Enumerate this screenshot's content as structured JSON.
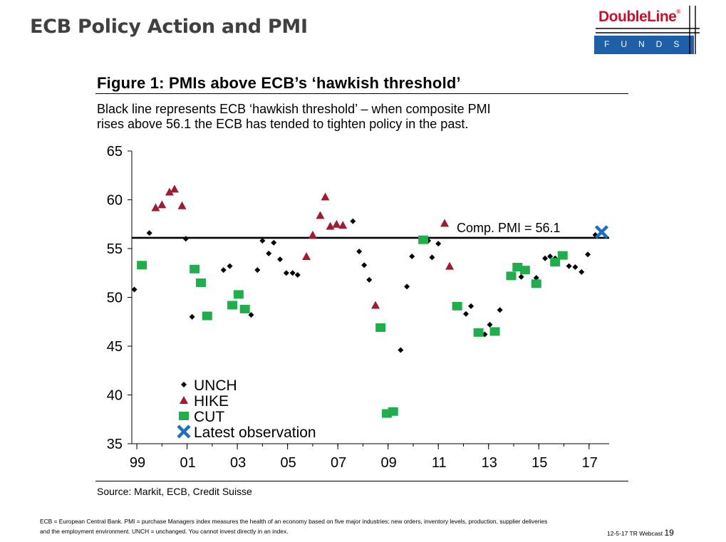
{
  "slide": {
    "title": "ECB Policy Action and PMI",
    "logo_name": "DoubleLine",
    "logo_reg": "®",
    "logo_sub": "FUNDS",
    "footnote_line1": "ECB = European Central Bank. PMI = purchase Managers index measures the health of an economy based on five major industries: new orders, inventory levels, production, supplier deliveries",
    "footnote_line2": "and the employment environment. UNCH = unchanged. You cannot invest directly in an index.",
    "webcast": "12-5-17 TR Webcast",
    "page_number": "19"
  },
  "colors": {
    "title_gray": "#404040",
    "logo_red": "#c8102e",
    "logo_blue": "#1f5fa8",
    "unch": "#000000",
    "hike": "#9e1b32",
    "cut": "#1fae4b",
    "latest": "#1f6fc1"
  },
  "chart_data": {
    "type": "scatter",
    "title": "Figure 1: PMIs above ECB’s ‘hawkish threshold’",
    "subtitle_line1": "Black line represents ECB ‘hawkish threshold’ – when composite PMI",
    "subtitle_line2": "rises above 56.1 the ECB has tended to tighten policy in the past.",
    "source": "Source: Markit, ECB, Credit Suisse",
    "xlim": [
      1998.8,
      2017.8
    ],
    "ylim": [
      35,
      65
    ],
    "yticks": [
      35,
      40,
      45,
      50,
      55,
      60,
      65
    ],
    "xticks": [
      {
        "value": 1999,
        "label": "99"
      },
      {
        "value": 2001,
        "label": "01"
      },
      {
        "value": 2003,
        "label": "03"
      },
      {
        "value": 2005,
        "label": "05"
      },
      {
        "value": 2007,
        "label": "07"
      },
      {
        "value": 2009,
        "label": "09"
      },
      {
        "value": 2011,
        "label": "11"
      },
      {
        "value": 2013,
        "label": "13"
      },
      {
        "value": 2015,
        "label": "15"
      },
      {
        "value": 2017,
        "label": "17"
      }
    ],
    "threshold": {
      "value": 56.1,
      "label": "Comp. PMI = 56.1"
    },
    "legend": {
      "position": "bottom-left",
      "entries": [
        {
          "key": "unch",
          "label": "UNCH"
        },
        {
          "key": "hike",
          "label": "HIKE"
        },
        {
          "key": "cut",
          "label": "CUT"
        },
        {
          "key": "latest",
          "label": "Latest observation"
        }
      ]
    },
    "series": {
      "unch": [
        [
          1998.9,
          50.8
        ],
        [
          1999.5,
          56.6
        ],
        [
          2000.95,
          56.0
        ],
        [
          2001.2,
          48.0
        ],
        [
          2002.45,
          52.8
        ],
        [
          2002.7,
          53.2
        ],
        [
          2003.55,
          48.2
        ],
        [
          2003.8,
          52.8
        ],
        [
          2004.0,
          55.8
        ],
        [
          2004.25,
          54.5
        ],
        [
          2004.45,
          55.6
        ],
        [
          2004.7,
          53.9
        ],
        [
          2004.95,
          52.5
        ],
        [
          2005.2,
          52.5
        ],
        [
          2005.4,
          52.3
        ],
        [
          2007.6,
          57.8
        ],
        [
          2007.85,
          54.7
        ],
        [
          2008.05,
          53.3
        ],
        [
          2008.25,
          51.8
        ],
        [
          2009.5,
          44.6
        ],
        [
          2009.75,
          51.1
        ],
        [
          2009.95,
          54.2
        ],
        [
          2010.6,
          55.8
        ],
        [
          2010.75,
          54.1
        ],
        [
          2011.0,
          55.5
        ],
        [
          2012.1,
          48.3
        ],
        [
          2012.3,
          49.1
        ],
        [
          2012.85,
          46.2
        ],
        [
          2013.05,
          47.2
        ],
        [
          2013.45,
          48.7
        ],
        [
          2014.3,
          52.1
        ],
        [
          2014.9,
          52.0
        ],
        [
          2015.25,
          54.0
        ],
        [
          2015.45,
          54.2
        ],
        [
          2015.65,
          54.0
        ],
        [
          2016.2,
          53.2
        ],
        [
          2016.45,
          53.1
        ],
        [
          2016.7,
          52.6
        ],
        [
          2016.95,
          54.4
        ],
        [
          2017.25,
          56.4
        ]
      ],
      "hike": [
        [
          1999.75,
          59.2
        ],
        [
          2000.0,
          59.5
        ],
        [
          2000.3,
          60.8
        ],
        [
          2000.5,
          61.1
        ],
        [
          2000.8,
          59.4
        ],
        [
          2005.75,
          54.2
        ],
        [
          2006.0,
          56.4
        ],
        [
          2006.3,
          58.4
        ],
        [
          2006.5,
          60.3
        ],
        [
          2006.7,
          57.3
        ],
        [
          2006.95,
          57.5
        ],
        [
          2007.2,
          57.4
        ],
        [
          2008.5,
          49.2
        ],
        [
          2011.25,
          57.6
        ],
        [
          2011.45,
          53.2
        ]
      ],
      "cut": [
        [
          1999.2,
          53.3
        ],
        [
          2001.3,
          52.9
        ],
        [
          2001.55,
          51.5
        ],
        [
          2001.8,
          48.1
        ],
        [
          2002.8,
          49.2
        ],
        [
          2003.05,
          50.3
        ],
        [
          2003.3,
          48.8
        ],
        [
          2008.7,
          46.9
        ],
        [
          2008.95,
          38.1
        ],
        [
          2009.2,
          38.3
        ],
        [
          2010.4,
          55.9
        ],
        [
          2011.75,
          49.1
        ],
        [
          2012.6,
          46.4
        ],
        [
          2013.25,
          46.5
        ],
        [
          2013.9,
          52.2
        ],
        [
          2014.15,
          53.1
        ],
        [
          2014.45,
          52.8
        ],
        [
          2014.9,
          51.4
        ],
        [
          2015.65,
          53.6
        ],
        [
          2015.95,
          54.3
        ]
      ],
      "latest": [
        [
          2017.5,
          56.7
        ]
      ]
    }
  }
}
